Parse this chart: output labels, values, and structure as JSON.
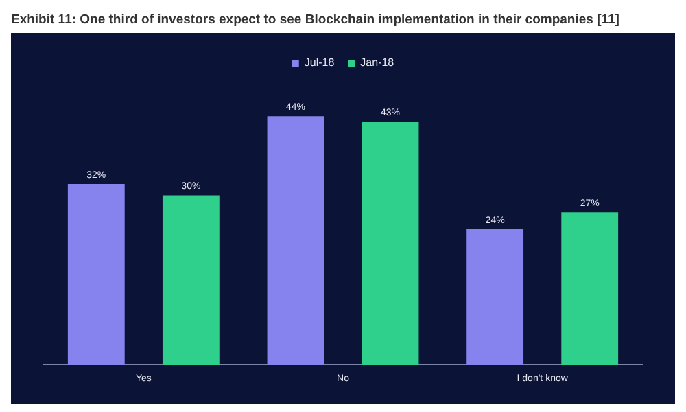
{
  "chart_data": {
    "type": "bar",
    "title": "Exhibit 11: One third of investors expect to see Blockchain implementation in their companies [11]",
    "categories": [
      "Yes",
      "No",
      "I don't know"
    ],
    "series": [
      {
        "name": "Jul-18",
        "color": "#8683ee",
        "values": [
          32,
          44,
          24
        ],
        "value_labels": [
          "32%",
          "44%",
          "24%"
        ]
      },
      {
        "name": "Jan-18",
        "color": "#2fcf8c",
        "values": [
          30,
          43,
          27
        ],
        "value_labels": [
          "30%",
          "43%",
          "27%"
        ]
      }
    ],
    "legend": "top",
    "grid": false
  }
}
